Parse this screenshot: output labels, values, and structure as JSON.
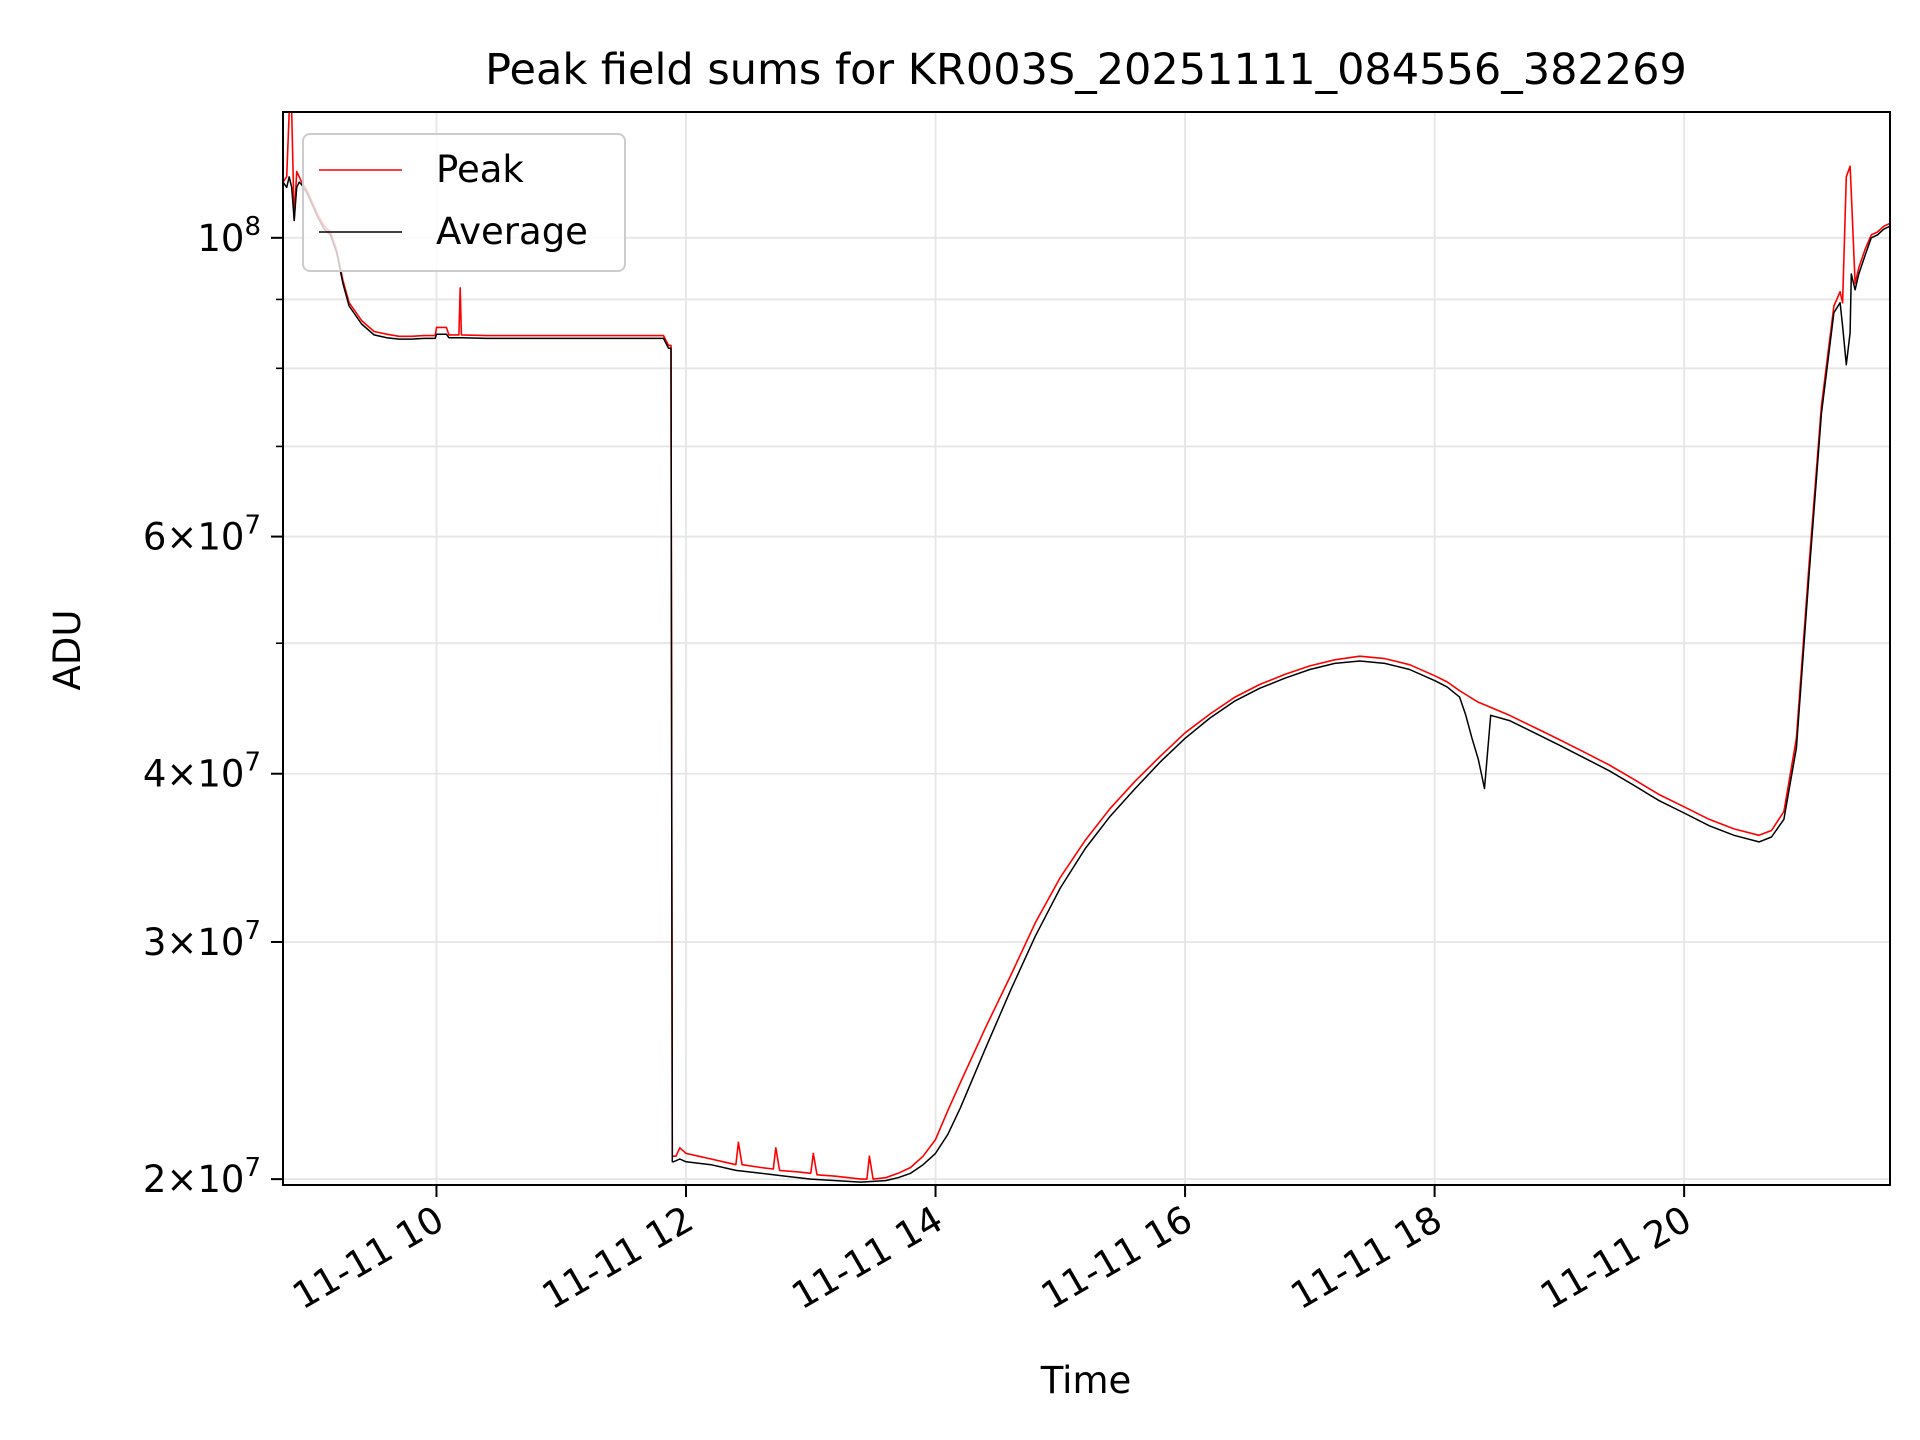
{
  "chart_data": {
    "type": "line",
    "title": "Peak field sums for KR003S_20251111_084556_382269",
    "xlabel": "Time",
    "ylabel": "ADU",
    "yscale": "log",
    "xlim": [
      8.77,
      21.65
    ],
    "ylim": [
      19800000,
      124000000
    ],
    "grid": true,
    "legend": "top-left",
    "x_ticks": [
      {
        "value": 10,
        "label": "11-11 10"
      },
      {
        "value": 12,
        "label": "11-11 12"
      },
      {
        "value": 14,
        "label": "11-11 14"
      },
      {
        "value": 16,
        "label": "11-11 16"
      },
      {
        "value": 18,
        "label": "11-11 18"
      },
      {
        "value": 20,
        "label": "11-11 20"
      }
    ],
    "y_major_ticks": [
      {
        "value": 20000000,
        "coef": "2",
        "exp": "7"
      },
      {
        "value": 30000000,
        "coef": "3",
        "exp": "7"
      },
      {
        "value": 40000000,
        "coef": "4",
        "exp": "7"
      },
      {
        "value": 60000000,
        "coef": "6",
        "exp": "7"
      },
      {
        "value": 100000000,
        "coef": "",
        "exp": "8"
      }
    ],
    "y_minor_ticks": [
      50000000,
      70000000,
      80000000,
      90000000
    ],
    "series": [
      {
        "name": "Peak",
        "color": "#ff0000",
        "x": [
          8.77,
          8.8,
          8.82,
          8.84,
          8.86,
          8.88,
          8.9,
          8.92,
          8.96,
          9.0,
          9.05,
          9.1,
          9.15,
          9.2,
          9.25,
          9.3,
          9.4,
          9.5,
          9.6,
          9.7,
          9.8,
          9.9,
          9.99,
          10.0,
          10.02,
          10.08,
          10.1,
          10.15,
          10.18,
          10.19,
          10.2,
          10.4,
          10.8,
          11.2,
          11.6,
          11.8,
          11.82,
          11.86,
          11.88,
          11.89,
          11.9,
          11.92,
          11.95,
          12.0,
          12.1,
          12.2,
          12.3,
          12.4,
          12.42,
          12.45,
          12.6,
          12.7,
          12.72,
          12.75,
          12.9,
          13.0,
          13.02,
          13.05,
          13.2,
          13.4,
          13.45,
          13.47,
          13.5,
          13.6,
          13.7,
          13.8,
          13.9,
          14.0,
          14.1,
          14.2,
          14.4,
          14.6,
          14.8,
          15.0,
          15.2,
          15.4,
          15.6,
          15.8,
          16.0,
          16.2,
          16.4,
          16.6,
          16.8,
          17.0,
          17.2,
          17.4,
          17.6,
          17.8,
          18.0,
          18.1,
          18.2,
          18.25,
          18.3,
          18.35,
          18.4,
          18.45,
          18.6,
          18.8,
          19.0,
          19.2,
          19.4,
          19.6,
          19.8,
          20.0,
          20.2,
          20.4,
          20.6,
          20.7,
          20.8,
          20.9,
          21.0,
          21.1,
          21.2,
          21.25,
          21.27,
          21.3,
          21.33,
          21.34,
          21.37,
          21.4,
          21.45,
          21.5,
          21.55,
          21.6,
          21.65
        ],
        "values": [
          110000000,
          111000000,
          124000000,
          124000000,
          103000000,
          112000000,
          111000000,
          110000000,
          108500000,
          106500000,
          104000000,
          102000000,
          101000000,
          98000000,
          93000000,
          89500000,
          86800000,
          85200000,
          84800000,
          84500000,
          84500000,
          84600000,
          84600000,
          85800000,
          85800000,
          85800000,
          84700000,
          84700000,
          84700000,
          91800000,
          84700000,
          84600000,
          84600000,
          84600000,
          84600000,
          84600000,
          84600000,
          83200000,
          83200000,
          20800000,
          20800000,
          20800000,
          21100000,
          20900000,
          20800000,
          20700000,
          20600000,
          20500000,
          21300000,
          20500000,
          20400000,
          20350000,
          21100000,
          20300000,
          20250000,
          20200000,
          20900000,
          20150000,
          20100000,
          20000000,
          20000000,
          20800000,
          20000000,
          20050000,
          20200000,
          20400000,
          20800000,
          21400000,
          22500000,
          23600000,
          25900000,
          28300000,
          31000000,
          33500000,
          35700000,
          37700000,
          39500000,
          41200000,
          42900000,
          44300000,
          45600000,
          46600000,
          47400000,
          48100000,
          48600000,
          48900000,
          48700000,
          48200000,
          47300000,
          46800000,
          46100000,
          45800000,
          45500000,
          45200000,
          45000000,
          44800000,
          44200000,
          43300000,
          42400000,
          41500000,
          40600000,
          39600000,
          38600000,
          37800000,
          37000000,
          36400000,
          36000000,
          36300000,
          37500000,
          42500000,
          57000000,
          75000000,
          89000000,
          91200000,
          89500000,
          111000000,
          113000000,
          108000000,
          92500000,
          95000000,
          98000000,
          100500000,
          101000000,
          102000000,
          102500000
        ]
      },
      {
        "name": "Average",
        "color": "#000000",
        "x": [
          8.77,
          8.8,
          8.82,
          8.84,
          8.86,
          8.88,
          8.9,
          8.92,
          8.96,
          9.0,
          9.05,
          9.1,
          9.15,
          9.2,
          9.25,
          9.3,
          9.4,
          9.5,
          9.6,
          9.7,
          9.8,
          9.9,
          9.99,
          10.0,
          10.02,
          10.08,
          10.1,
          10.2,
          10.4,
          10.8,
          11.2,
          11.6,
          11.8,
          11.82,
          11.86,
          11.88,
          11.89,
          11.9,
          11.95,
          12.0,
          12.2,
          12.4,
          12.6,
          12.8,
          13.0,
          13.2,
          13.4,
          13.6,
          13.7,
          13.8,
          13.9,
          14.0,
          14.1,
          14.2,
          14.4,
          14.6,
          14.8,
          15.0,
          15.2,
          15.4,
          15.6,
          15.8,
          16.0,
          16.2,
          16.4,
          16.6,
          16.8,
          17.0,
          17.2,
          17.4,
          17.6,
          17.8,
          18.0,
          18.1,
          18.2,
          18.25,
          18.3,
          18.35,
          18.4,
          18.45,
          18.6,
          18.8,
          19.0,
          19.2,
          19.4,
          19.6,
          19.8,
          20.0,
          20.2,
          20.4,
          20.6,
          20.7,
          20.8,
          20.9,
          21.0,
          21.1,
          21.2,
          21.25,
          21.27,
          21.3,
          21.33,
          21.34,
          21.37,
          21.4,
          21.45,
          21.5,
          21.55,
          21.6,
          21.65
        ],
        "values": [
          110000000,
          109000000,
          111000000,
          109000000,
          103000000,
          109000000,
          110000000,
          109500000,
          108000000,
          106000000,
          103500000,
          101500000,
          100500000,
          97500000,
          92500000,
          89000000,
          86300000,
          84700000,
          84300000,
          84100000,
          84100000,
          84200000,
          84200000,
          84800000,
          84800000,
          84800000,
          84300000,
          84300000,
          84200000,
          84200000,
          84200000,
          84200000,
          84200000,
          84200000,
          82800000,
          82800000,
          20600000,
          20600000,
          20700000,
          20600000,
          20500000,
          20300000,
          20200000,
          20100000,
          20000000,
          19950000,
          19900000,
          19950000,
          20050000,
          20200000,
          20500000,
          20900000,
          21600000,
          22600000,
          25000000,
          27600000,
          30300000,
          32900000,
          35200000,
          37200000,
          39000000,
          40800000,
          42500000,
          44000000,
          45300000,
          46300000,
          47100000,
          47800000,
          48300000,
          48500000,
          48300000,
          47800000,
          46900000,
          46400000,
          45600000,
          44200000,
          42500000,
          41000000,
          39000000,
          44200000,
          43800000,
          42900000,
          42000000,
          41100000,
          40200000,
          39200000,
          38200000,
          37400000,
          36600000,
          36000000,
          35600000,
          35900000,
          37000000,
          41800000,
          56000000,
          74000000,
          88000000,
          89500000,
          86000000,
          80500000,
          85000000,
          94000000,
          91500000,
          94000000,
          97000000,
          100000000,
          100500000,
          101500000,
          102000000
        ]
      }
    ]
  }
}
